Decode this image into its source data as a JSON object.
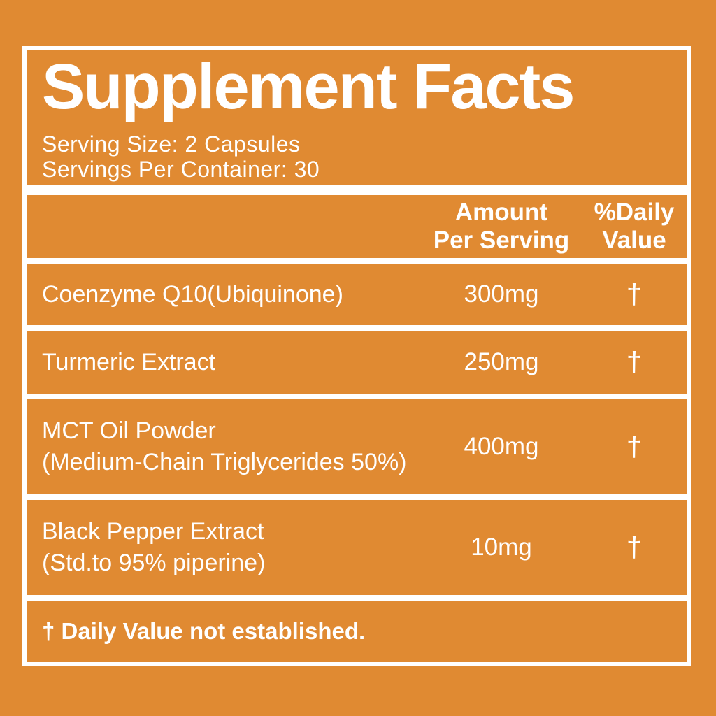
{
  "label": {
    "title": "Supplement Facts",
    "serving_size": "Serving Size: 2 Capsules",
    "servings_per_container": "Servings Per Container: 30",
    "columns": {
      "amount_line1": "Amount",
      "amount_line2": "Per Serving",
      "dv_line1": "%Daily",
      "dv_line2": "Value"
    },
    "rows": [
      {
        "name": "Coenzyme Q10(Ubiquinone)",
        "amount": "300mg",
        "dv": "†"
      },
      {
        "name": "Turmeric Extract",
        "amount": "250mg",
        "dv": "†"
      },
      {
        "name": "MCT Oil Powder",
        "name_line2": "(Medium-Chain Triglycerides 50%)",
        "amount": "400mg",
        "dv": "†"
      },
      {
        "name": "Black Pepper Extract",
        "name_line2": "(Std.to 95% piperine)",
        "amount": "10mg",
        "dv": "†"
      }
    ],
    "footnote": "† Daily Value not established.",
    "colors": {
      "background": "#E08A32",
      "frame": "#FFFFFF",
      "text": "#FFFFFF"
    }
  }
}
